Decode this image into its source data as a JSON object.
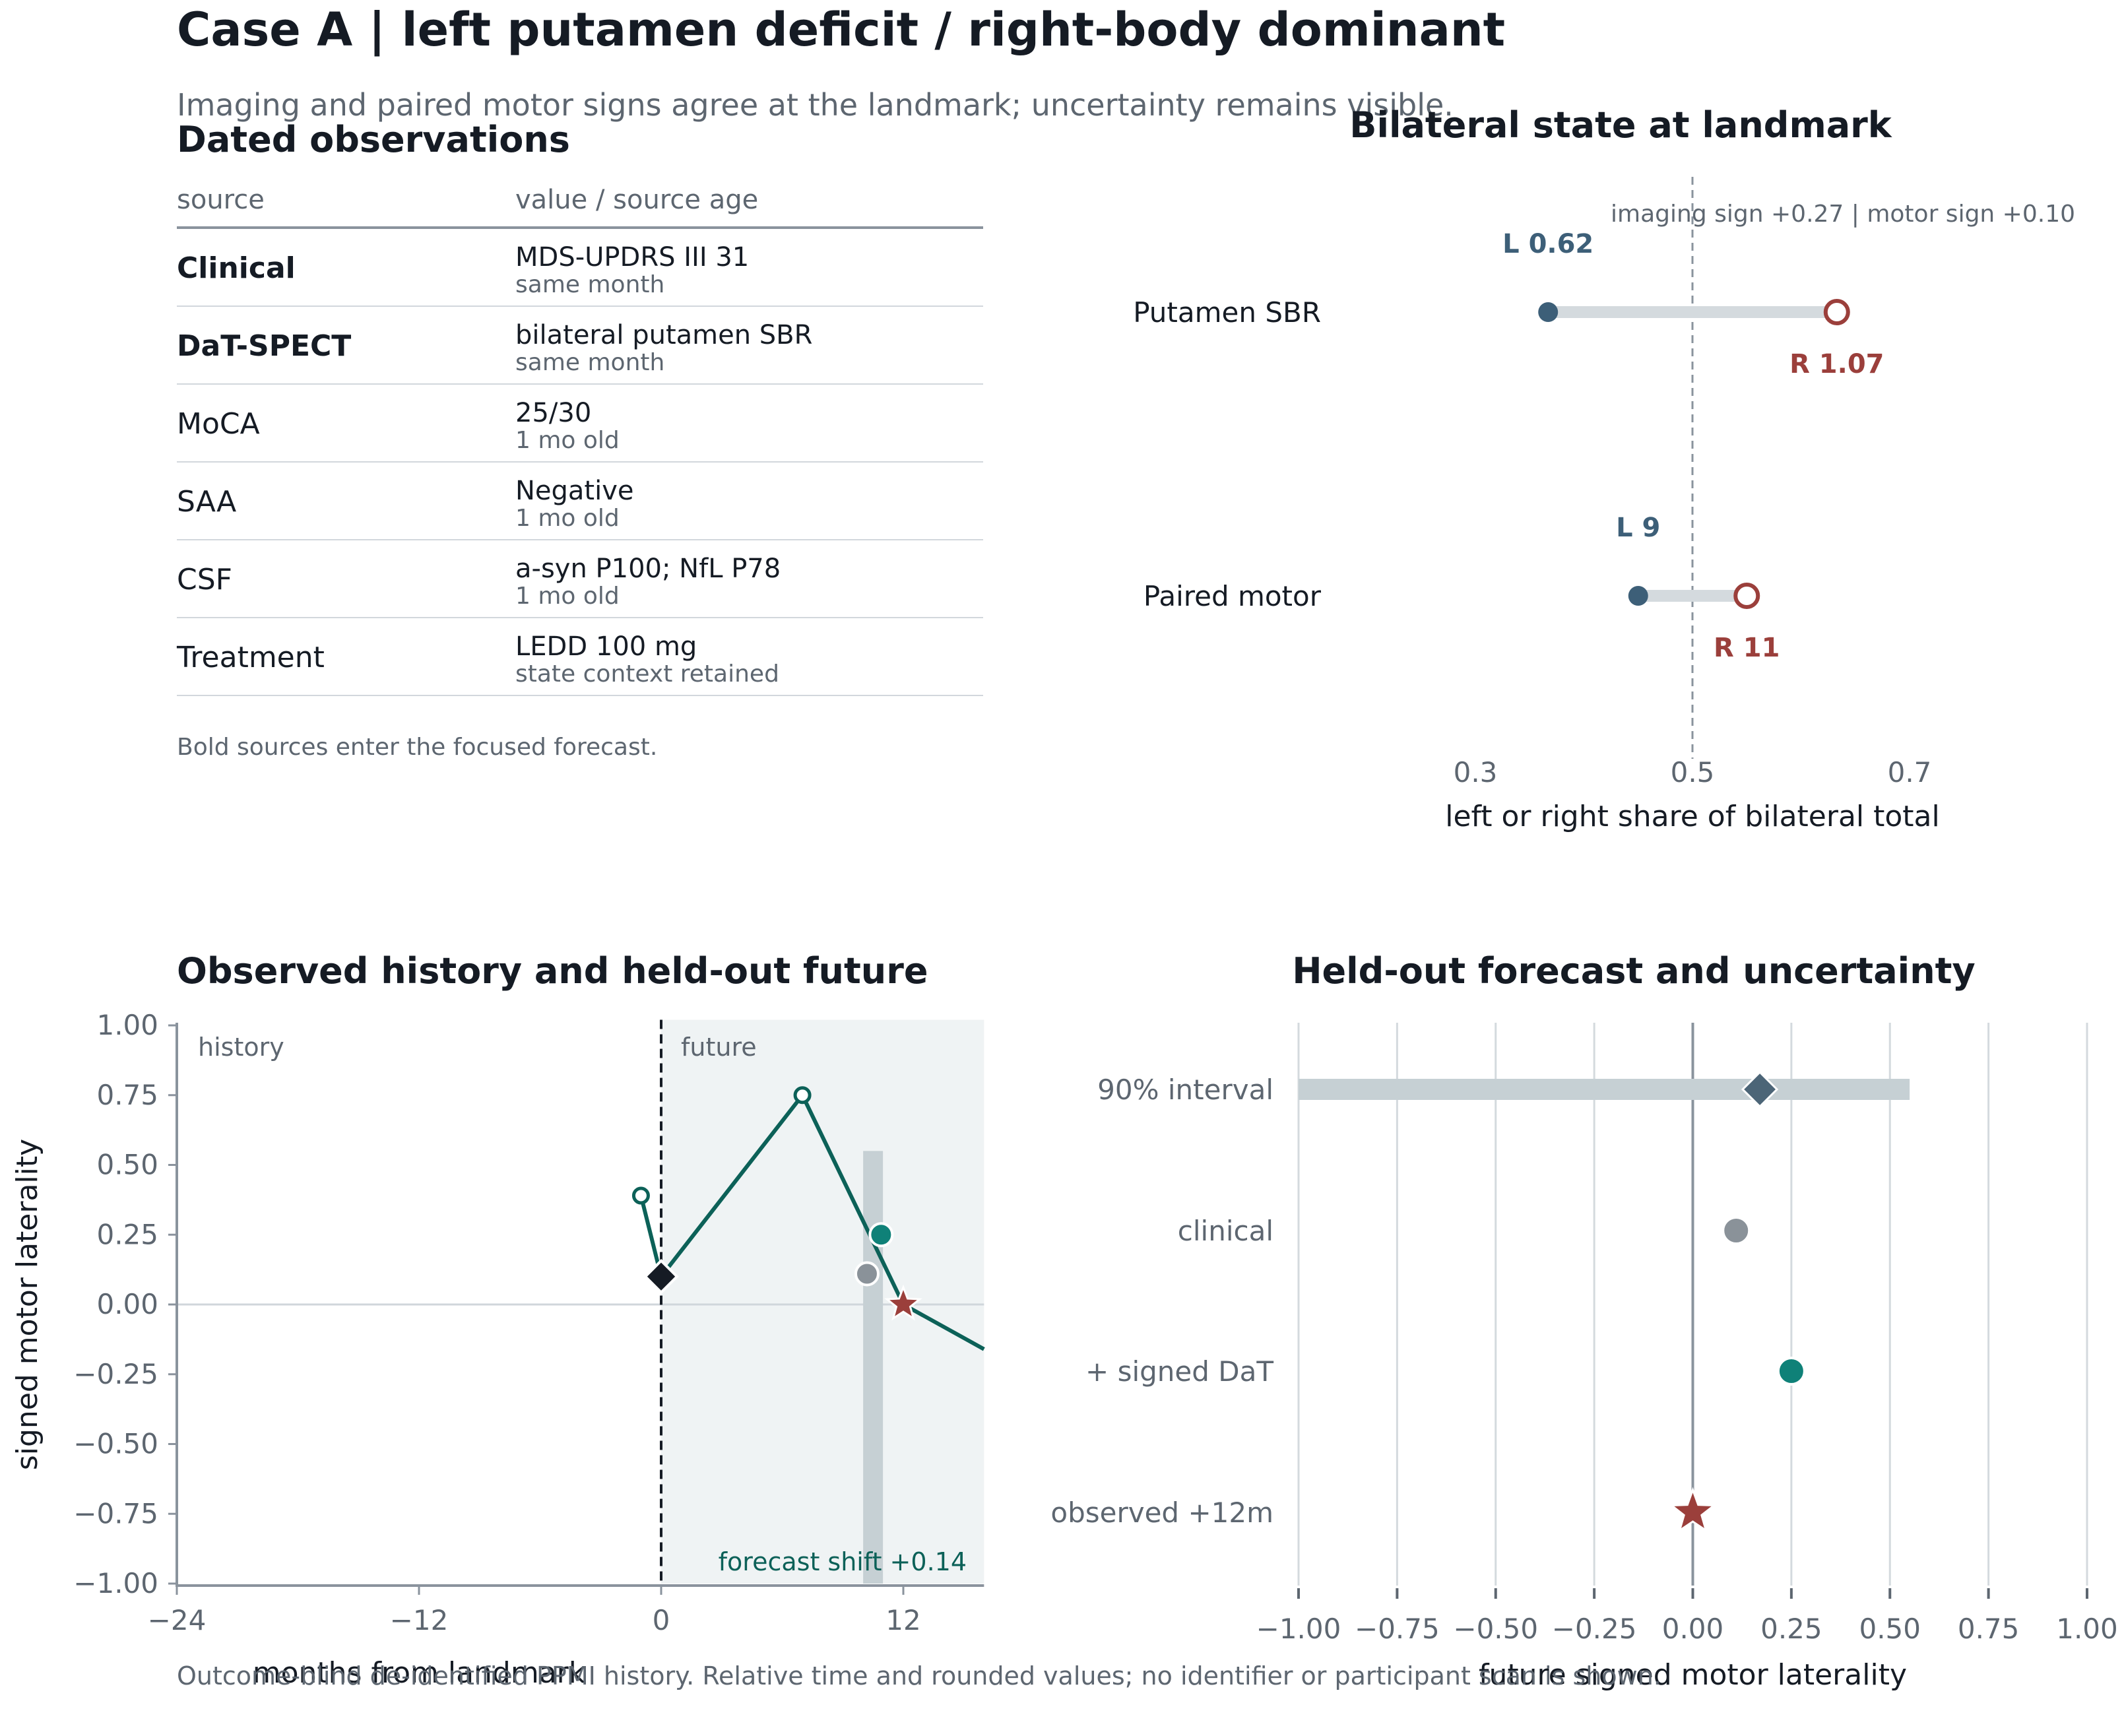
{
  "header": {
    "title": "Case A | left putamen deficit / right-body dominant",
    "subtitle": "Imaging and paired motor signs agree at the landmark; uncertainty remains visible."
  },
  "table": {
    "title": "Dated observations",
    "col_source": "source",
    "col_value": "value / source age",
    "rows": [
      {
        "source": "Clinical",
        "bold": true,
        "value": "MDS-UPDRS III 31",
        "age": "same month"
      },
      {
        "source": "DaT-SPECT",
        "bold": true,
        "value": "bilateral putamen SBR",
        "age": "same month"
      },
      {
        "source": "MoCA",
        "bold": false,
        "value": "25/30",
        "age": "1 mo old"
      },
      {
        "source": "SAA",
        "bold": false,
        "value": "Negative",
        "age": "1 mo old"
      },
      {
        "source": "CSF",
        "bold": false,
        "value": "a-syn P100; NfL P78",
        "age": "1 mo old"
      },
      {
        "source": "Treatment",
        "bold": false,
        "value": "LEDD 100 mg",
        "age": "state context retained"
      }
    ],
    "note": "Bold sources enter the focused forecast."
  },
  "footer": "Outcome-blind de-identified PPMI history. Relative time and rounded values; no identifier or participant scan is shown.",
  "colors": {
    "left": "#3d5f78",
    "right": "#9b3f3b",
    "teal": "#0c6158",
    "teal_bright": "#0f8178",
    "grey_point": "#8a9299",
    "band": "#c6d0d4",
    "ink": "#151b24",
    "muted": "#5d6670"
  },
  "chart_data": [
    {
      "id": "bilateral",
      "type": "dumbbell",
      "title": "Bilateral state at landmark",
      "annotation": "imaging sign +0.27  |  motor sign +0.10",
      "xlabel": "left or right share of bilateral total",
      "xlim": [
        0.2,
        0.72
      ],
      "xticks": [
        0.3,
        0.5,
        0.7
      ],
      "xtick_labels": [
        "0.3",
        "0.5",
        "0.7"
      ],
      "reference_x": 0.5,
      "rows": [
        {
          "label": "Putamen SBR",
          "left_share": 0.367,
          "right_share": 0.633,
          "left_label": "L 0.62",
          "right_label": "R 1.07"
        },
        {
          "label": "Paired motor",
          "left_share": 0.45,
          "right_share": 0.55,
          "left_label": "L 9",
          "right_label": "R 11"
        }
      ]
    },
    {
      "id": "history",
      "type": "line",
      "title": "Observed history and held-out future",
      "xlabel": "months from landmark",
      "ylabel": "signed motor laterality",
      "xlim": [
        -24,
        16
      ],
      "ylim": [
        -1.0,
        1.0
      ],
      "xticks": [
        -24,
        -12,
        0,
        12
      ],
      "xtick_labels": [
        "−24",
        "−12",
        "0",
        "12"
      ],
      "yticks": [
        -1.0,
        -0.75,
        -0.5,
        -0.25,
        0.0,
        0.25,
        0.5,
        0.75,
        1.0
      ],
      "ytick_labels": [
        "−1.00",
        "−0.75",
        "−0.50",
        "−0.25",
        "0.00",
        "0.25",
        "0.50",
        "0.75",
        "1.00"
      ],
      "history_label": "history",
      "future_label": "future",
      "shift_label": "forecast shift +0.14",
      "observed_line": {
        "x": [
          -1,
          0,
          7,
          12,
          16
        ],
        "y": [
          0.39,
          0.1,
          0.75,
          0.0,
          -0.16
        ]
      },
      "history_points": {
        "x": [
          -1
        ],
        "y": [
          0.39
        ]
      },
      "future_open_points": {
        "x": [
          7
        ],
        "y": [
          0.75
        ]
      },
      "landmark_point": {
        "x": 0,
        "y": 0.1
      },
      "interval_band": {
        "x": 10.5,
        "y_low": -1.0,
        "y_high": 0.55
      },
      "clinical_point": {
        "x": 10.2,
        "y": 0.11
      },
      "dat_point": {
        "x": 10.9,
        "y": 0.25
      },
      "observed_future_point": {
        "x": 12,
        "y": 0.0
      }
    },
    {
      "id": "forecast",
      "type": "dot",
      "title": "Held-out forecast and uncertainty",
      "xlabel": "future signed motor laterality",
      "xlim": [
        -1.0,
        1.0
      ],
      "xticks": [
        -1.0,
        -0.75,
        -0.5,
        -0.25,
        0.0,
        0.25,
        0.5,
        0.75,
        1.0
      ],
      "xtick_labels": [
        "−1.00",
        "−0.75",
        "−0.50",
        "−0.25",
        "0.00",
        "0.25",
        "0.50",
        "0.75",
        "1.00"
      ],
      "rows": [
        {
          "label": "90% interval",
          "kind": "interval",
          "low": -1.0,
          "high": 0.55,
          "point": 0.17
        },
        {
          "label": "clinical",
          "kind": "point",
          "value": 0.11
        },
        {
          "label": "+ signed DaT",
          "kind": "point",
          "value": 0.25
        },
        {
          "label": "observed +12m",
          "kind": "star",
          "value": 0.0
        }
      ]
    }
  ]
}
